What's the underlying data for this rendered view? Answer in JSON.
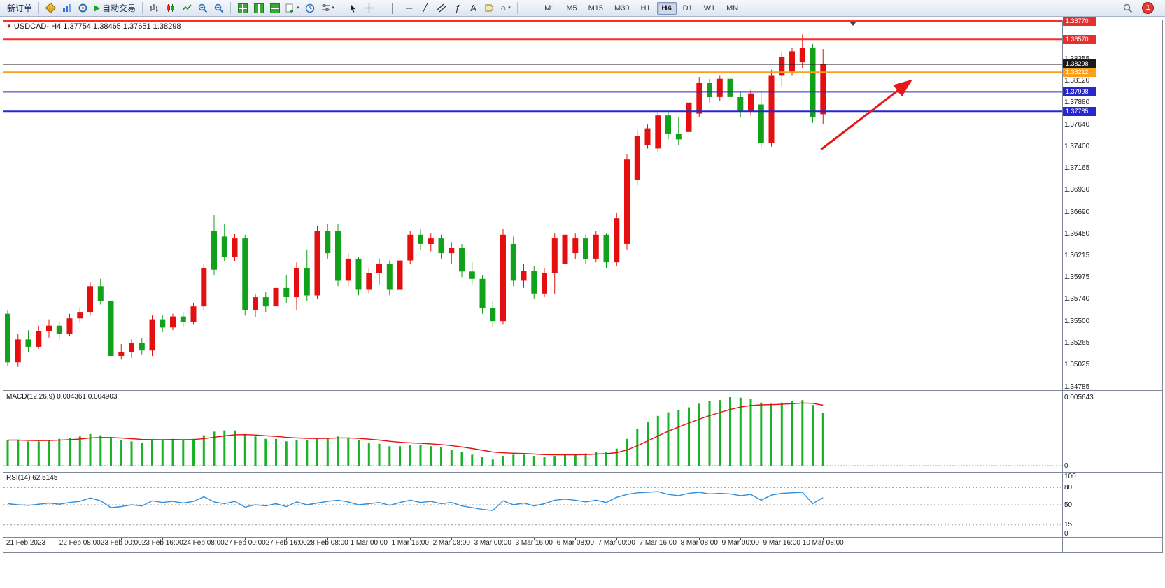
{
  "toolbar": {
    "new_order": "新订单",
    "auto_trading": "自动交易",
    "timeframes": [
      "M1",
      "M5",
      "M15",
      "M30",
      "H1",
      "H4",
      "D1",
      "W1",
      "MN"
    ],
    "active_timeframe": "H4",
    "notification_count": "1"
  },
  "icons": {
    "title_marker": "▼",
    "caret": "▾",
    "crosshair": "+",
    "vertical_line": "│",
    "horizontal_line": "─",
    "trendline": "╱",
    "fibonacci": "ƒ",
    "text_tool": "A",
    "ellipse": "○"
  },
  "chart": {
    "symbol": "USDCAD-,H4",
    "ohlc": "1.37754 1.38465 1.37651 1.38298"
  },
  "chart_data": {
    "type": "candlestick",
    "symbol": "USDCAD-",
    "timeframe": "H4",
    "colors": {
      "bull": "#e60f0f",
      "bear": "#12a11b"
    },
    "last_candle": {
      "open": 1.37754,
      "high": 1.38465,
      "low": 1.37651,
      "close": 1.38298
    },
    "price_range": [
      1.34747,
      1.38778
    ],
    "candles": [
      [
        1.3558,
        1.3562,
        1.3501,
        1.3505
      ],
      [
        1.3505,
        1.3536,
        1.35,
        1.353
      ],
      [
        1.353,
        1.354,
        1.3516,
        1.3522
      ],
      [
        1.3522,
        1.3545,
        1.352,
        1.3539
      ],
      [
        1.3539,
        1.3552,
        1.3532,
        1.3545
      ],
      [
        1.3545,
        1.355,
        1.353,
        1.3536
      ],
      [
        1.3536,
        1.3558,
        1.3534,
        1.3553
      ],
      [
        1.3553,
        1.3565,
        1.3548,
        1.356
      ],
      [
        1.356,
        1.3592,
        1.3556,
        1.3588
      ],
      [
        1.3588,
        1.3596,
        1.3568,
        1.3572
      ],
      [
        1.3572,
        1.3576,
        1.3505,
        1.3512
      ],
      [
        1.3512,
        1.3525,
        1.3508,
        1.3516
      ],
      [
        1.3516,
        1.353,
        1.351,
        1.3526
      ],
      [
        1.3526,
        1.3532,
        1.3513,
        1.3518
      ],
      [
        1.3518,
        1.3556,
        1.3512,
        1.3552
      ],
      [
        1.3552,
        1.3556,
        1.3538,
        1.3543
      ],
      [
        1.3543,
        1.3558,
        1.354,
        1.3555
      ],
      [
        1.3555,
        1.356,
        1.3544,
        1.3549
      ],
      [
        1.3549,
        1.357,
        1.3546,
        1.3566
      ],
      [
        1.3566,
        1.3612,
        1.3562,
        1.3608
      ],
      [
        1.3648,
        1.3666,
        1.36,
        1.3606
      ],
      [
        1.3642,
        1.3656,
        1.3615,
        1.362
      ],
      [
        1.362,
        1.3645,
        1.3615,
        1.364
      ],
      [
        1.364,
        1.3644,
        1.3556,
        1.3562
      ],
      [
        1.3562,
        1.358,
        1.3554,
        1.3576
      ],
      [
        1.3576,
        1.3582,
        1.356,
        1.3566
      ],
      [
        1.3566,
        1.359,
        1.3562,
        1.3586
      ],
      [
        1.3586,
        1.36,
        1.357,
        1.3576
      ],
      [
        1.3576,
        1.3614,
        1.3562,
        1.3608
      ],
      [
        1.3608,
        1.3628,
        1.3572,
        1.3578
      ],
      [
        1.3578,
        1.3654,
        1.3574,
        1.3648
      ],
      [
        1.3648,
        1.3656,
        1.3618,
        1.3624
      ],
      [
        1.3648,
        1.3656,
        1.3588,
        1.3594
      ],
      [
        1.3594,
        1.3624,
        1.3588,
        1.3618
      ],
      [
        1.3618,
        1.362,
        1.3578,
        1.3584
      ],
      [
        1.3584,
        1.3608,
        1.358,
        1.3602
      ],
      [
        1.3602,
        1.3618,
        1.359,
        1.3612
      ],
      [
        1.3612,
        1.3616,
        1.3578,
        1.3584
      ],
      [
        1.3584,
        1.3622,
        1.358,
        1.3616
      ],
      [
        1.3616,
        1.3648,
        1.3612,
        1.3644
      ],
      [
        1.3644,
        1.365,
        1.3628,
        1.3634
      ],
      [
        1.3634,
        1.3646,
        1.3626,
        1.364
      ],
      [
        1.364,
        1.3644,
        1.3618,
        1.3624
      ],
      [
        1.3624,
        1.3636,
        1.3612,
        1.363
      ],
      [
        1.363,
        1.3634,
        1.3598,
        1.3604
      ],
      [
        1.3604,
        1.3614,
        1.359,
        1.3596
      ],
      [
        1.3596,
        1.36,
        1.3558,
        1.3564
      ],
      [
        1.3564,
        1.3572,
        1.3544,
        1.355
      ],
      [
        1.355,
        1.365,
        1.3546,
        1.3644
      ],
      [
        1.3634,
        1.3642,
        1.3588,
        1.3594
      ],
      [
        1.3594,
        1.3612,
        1.3586,
        1.3605
      ],
      [
        1.3605,
        1.361,
        1.3574,
        1.358
      ],
      [
        1.358,
        1.3608,
        1.3576,
        1.3602
      ],
      [
        1.3602,
        1.3646,
        1.358,
        1.364
      ],
      [
        1.3612,
        1.365,
        1.3606,
        1.3644
      ],
      [
        1.3624,
        1.3646,
        1.3618,
        1.364
      ],
      [
        1.364,
        1.3644,
        1.3612,
        1.3618
      ],
      [
        1.3618,
        1.3648,
        1.3614,
        1.3644
      ],
      [
        1.3644,
        1.3646,
        1.3608,
        1.3614
      ],
      [
        1.3614,
        1.3668,
        1.361,
        1.3662
      ],
      [
        1.3634,
        1.3732,
        1.3628,
        1.3726
      ],
      [
        1.3704,
        1.3758,
        1.3698,
        1.3752
      ],
      [
        1.3742,
        1.3764,
        1.3738,
        1.376
      ],
      [
        1.3738,
        1.3778,
        1.3734,
        1.3774
      ],
      [
        1.3774,
        1.3778,
        1.3748,
        1.3754
      ],
      [
        1.3754,
        1.3772,
        1.3742,
        1.3748
      ],
      [
        1.3756,
        1.3792,
        1.3752,
        1.3788
      ],
      [
        1.3776,
        1.3816,
        1.3772,
        1.381
      ],
      [
        1.381,
        1.3814,
        1.3788,
        1.3794
      ],
      [
        1.3794,
        1.3818,
        1.379,
        1.3814
      ],
      [
        1.3814,
        1.3818,
        1.3788,
        1.3794
      ],
      [
        1.3794,
        1.38,
        1.3772,
        1.3778
      ],
      [
        1.3778,
        1.3802,
        1.3774,
        1.3798
      ],
      [
        1.3786,
        1.38,
        1.3738,
        1.3744
      ],
      [
        1.3744,
        1.3824,
        1.374,
        1.3818
      ],
      [
        1.3818,
        1.3844,
        1.3806,
        1.3838
      ],
      [
        1.3822,
        1.3848,
        1.3818,
        1.3844
      ],
      [
        1.3832,
        1.3862,
        1.3826,
        1.3848
      ],
      [
        1.3848,
        1.3852,
        1.3766,
        1.3772
      ],
      [
        1.37754,
        1.38465,
        1.37651,
        1.38298
      ]
    ],
    "time_labels": [
      {
        "i": 0,
        "t": "21 Feb 2023"
      },
      {
        "i": 7,
        "t": "22 Feb 08:00"
      },
      {
        "i": 11,
        "t": "23 Feb 00:00"
      },
      {
        "i": 15,
        "t": "23 Feb 16:00"
      },
      {
        "i": 19,
        "t": "24 Feb 08:00"
      },
      {
        "i": 23,
        "t": "27 Feb 00:00"
      },
      {
        "i": 27,
        "t": "27 Feb 16:00"
      },
      {
        "i": 31,
        "t": "28 Feb 08:00"
      },
      {
        "i": 35,
        "t": "1 Mar 00:00"
      },
      {
        "i": 39,
        "t": "1 Mar 16:00"
      },
      {
        "i": 43,
        "t": "2 Mar 08:00"
      },
      {
        "i": 47,
        "t": "3 Mar 00:00"
      },
      {
        "i": 51,
        "t": "3 Mar 16:00"
      },
      {
        "i": 55,
        "t": "6 Mar 08:00"
      },
      {
        "i": 59,
        "t": "7 Mar 00:00"
      },
      {
        "i": 63,
        "t": "7 Mar 16:00"
      },
      {
        "i": 67,
        "t": "8 Mar 08:00"
      },
      {
        "i": 71,
        "t": "9 Mar 00:00"
      },
      {
        "i": 75,
        "t": "9 Mar 16:00"
      },
      {
        "i": 79,
        "t": "10 Mar 08:00"
      }
    ],
    "price_axis_labels": [
      "1.38355",
      "1.38120",
      "1.37880",
      "1.37640",
      "1.37400",
      "1.37165",
      "1.36930",
      "1.36690",
      "1.36450",
      "1.36215",
      "1.35975",
      "1.35740",
      "1.35500",
      "1.35265",
      "1.35025",
      "1.34785"
    ],
    "horizontal_lines": [
      {
        "label": "1.38770",
        "price": 1.3877,
        "color": "#ff2b2b",
        "tag": "#e53030",
        "width": 2
      },
      {
        "label": "1.38570",
        "price": 1.3857,
        "color": "#ff2b2b",
        "tag": "#e53030",
        "width": 2
      },
      {
        "label": "1.38298",
        "price": 1.38298,
        "color": "#1a1a1a",
        "tag": "#1a1a1a",
        "width": 1
      },
      {
        "label": "1.38212",
        "price": 1.38212,
        "color": "#ff9d1c",
        "tag": "#ff9d1c",
        "width": 2
      },
      {
        "label": "1.37998",
        "price": 1.37998,
        "color": "#2727cc",
        "tag": "#2727cc",
        "width": 2
      },
      {
        "label": "1.37785",
        "price": 1.37785,
        "color": "#2727cc",
        "tag": "#2727cc",
        "width": 2
      }
    ],
    "arrow": {
      "color": "#e81717",
      "from_bar": 78.8,
      "from_price": 1.3737,
      "to_bar": 87.5,
      "to_price": 1.3812
    },
    "indicators": {
      "macd": {
        "name": "MACD(12,26,9)",
        "value_main": "0.004361",
        "value_signal": "0.004903",
        "scale_top_label": "0.005643",
        "scale_zero_label": "0",
        "scale_max": 0.005643,
        "signal_period": 9,
        "histogram_color": "#18b326",
        "signal_color": "#e60f0f",
        "histogram": [
          0.0021,
          0.0021,
          0.002,
          0.002,
          0.0021,
          0.0022,
          0.0023,
          0.0024,
          0.0026,
          0.0025,
          0.0023,
          0.0021,
          0.002,
          0.0019,
          0.0021,
          0.0021,
          0.0022,
          0.0021,
          0.0022,
          0.0025,
          0.0028,
          0.0029,
          0.0029,
          0.0026,
          0.0024,
          0.0022,
          0.0022,
          0.002,
          0.0021,
          0.0021,
          0.0022,
          0.0023,
          0.0024,
          0.0023,
          0.0021,
          0.0019,
          0.0018,
          0.0016,
          0.0016,
          0.0017,
          0.0017,
          0.0016,
          0.0015,
          0.0013,
          0.0011,
          0.0009,
          0.0007,
          0.0005,
          0.0008,
          0.0009,
          0.0009,
          0.0008,
          0.0007,
          0.0008,
          0.0009,
          0.0009,
          0.001,
          0.0011,
          0.0011,
          0.0014,
          0.0022,
          0.003,
          0.0036,
          0.0041,
          0.0044,
          0.0046,
          0.0048,
          0.0051,
          0.0053,
          0.0054,
          0.005643,
          0.0056,
          0.0055,
          0.0052,
          0.0051,
          0.0052,
          0.0053,
          0.0054,
          0.005,
          0.004361
        ]
      },
      "rsi": {
        "name": "RSI(14)",
        "value": "62.5145",
        "line_color": "#2f8fde",
        "levels": [
          15,
          50,
          80
        ],
        "range": [
          0,
          100
        ],
        "scale_labels": [
          "100",
          "80",
          "50",
          "15",
          "0"
        ],
        "values": [
          52,
          50,
          49,
          51,
          53,
          51,
          54,
          56,
          62,
          57,
          45,
          47,
          50,
          48,
          57,
          54,
          56,
          53,
          56,
          64,
          55,
          52,
          56,
          46,
          50,
          48,
          52,
          47,
          55,
          50,
          53,
          56,
          58,
          55,
          50,
          52,
          54,
          49,
          54,
          58,
          54,
          56,
          52,
          54,
          48,
          45,
          42,
          40,
          57,
          50,
          53,
          48,
          52,
          58,
          60,
          58,
          55,
          58,
          54,
          63,
          68,
          71,
          72,
          73,
          68,
          66,
          70,
          72,
          69,
          70,
          69,
          66,
          68,
          58,
          67,
          70,
          71,
          72,
          52,
          62.5
        ]
      }
    }
  }
}
